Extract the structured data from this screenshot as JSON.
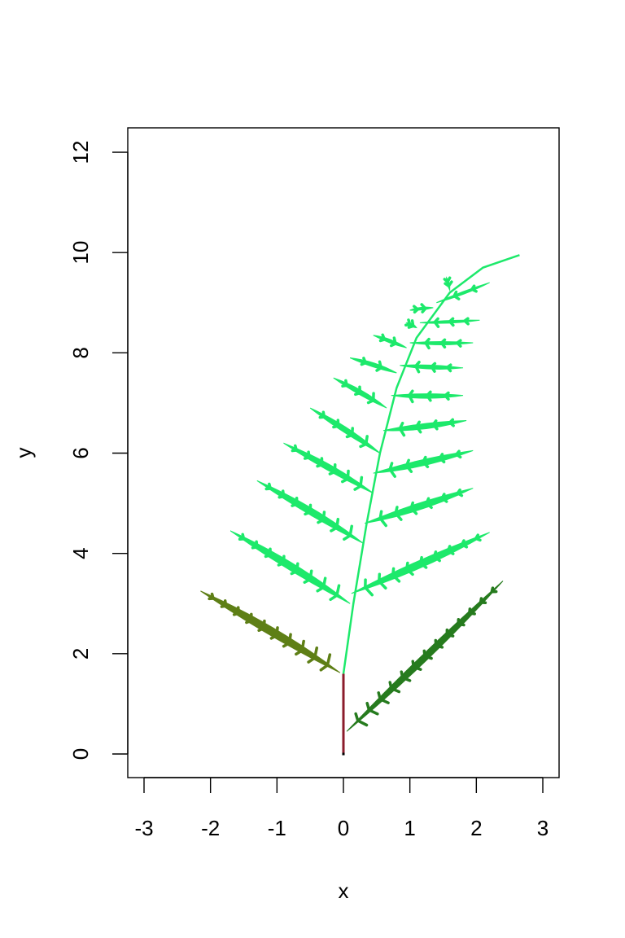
{
  "chart_data": {
    "type": "scatter",
    "title": "",
    "xlabel": "x",
    "ylabel": "y",
    "xlim": [
      -3,
      3
    ],
    "ylim": [
      0,
      12
    ],
    "x_ticks": [
      "-3",
      "-2",
      "-1",
      "0",
      "1",
      "2",
      "3"
    ],
    "y_ticks": [
      "0",
      "2",
      "4",
      "6",
      "8",
      "10",
      "12"
    ],
    "grid": false,
    "legend": "none",
    "colors": {
      "main_frond": "#1de96b",
      "left_leaflet": "#5e7f16",
      "right_leaflet": "#267b1e",
      "stem": "#8b1c2c"
    },
    "series": [
      {
        "points": [
          [
            0.0,
            1.6
          ],
          [
            -0.5,
            2.4
          ],
          [
            -0.15,
            2.1
          ],
          [
            -0.26,
            2.74
          ],
          [
            -0.3,
            3.13
          ],
          [
            -0.95,
            3.7
          ],
          [
            -1.4,
            3.85
          ],
          [
            -1.7,
            4.45
          ],
          [
            0.05,
            3.2
          ],
          [
            0.6,
            4.0
          ],
          [
            1.2,
            4.4
          ],
          [
            2.2,
            4.42
          ],
          [
            -0.25,
            4.25
          ],
          [
            -0.8,
            4.9
          ],
          [
            -1.3,
            5.45
          ],
          [
            0.25,
            4.6
          ],
          [
            1.0,
            5.1
          ],
          [
            1.9,
            5.3
          ],
          [
            -0.1,
            5.25
          ],
          [
            -0.55,
            5.7
          ],
          [
            -0.9,
            6.2
          ],
          [
            0.35,
            5.65
          ],
          [
            1.0,
            6.05
          ],
          [
            1.95,
            6.05
          ],
          [
            0.0,
            6.0
          ],
          [
            -0.3,
            6.5
          ],
          [
            -0.5,
            6.9
          ],
          [
            0.45,
            6.5
          ],
          [
            1.1,
            6.8
          ],
          [
            1.85,
            6.65
          ],
          [
            0.2,
            7.0
          ],
          [
            -0.1,
            7.2
          ],
          [
            -0.15,
            7.5
          ],
          [
            0.55,
            7.2
          ],
          [
            1.2,
            7.4
          ],
          [
            1.8,
            7.15
          ],
          [
            0.35,
            7.55
          ],
          [
            0.2,
            7.8
          ],
          [
            0.1,
            7.9
          ],
          [
            0.7,
            7.85
          ],
          [
            1.3,
            7.95
          ],
          [
            1.8,
            7.7
          ],
          [
            0.55,
            8.05
          ],
          [
            0.5,
            8.25
          ],
          [
            0.45,
            8.35
          ],
          [
            0.85,
            8.3
          ],
          [
            1.4,
            8.4
          ],
          [
            1.95,
            8.2
          ],
          [
            0.95,
            8.6
          ],
          [
            1.55,
            8.8
          ],
          [
            2.05,
            8.65
          ],
          [
            1.0,
            8.85
          ],
          [
            1.2,
            9.2
          ],
          [
            1.6,
            9.3
          ],
          [
            2.2,
            9.4
          ],
          [
            2.5,
            9.9
          ],
          [
            2.65,
            9.95
          ]
        ],
        "color": "#1de96b"
      },
      {
        "points": [
          [
            -0.1,
            1.62
          ],
          [
            -0.5,
            1.9
          ],
          [
            -1.0,
            2.0
          ],
          [
            -1.35,
            2.3
          ],
          [
            -1.75,
            2.75
          ],
          [
            -2.05,
            3.05
          ],
          [
            -2.15,
            3.25
          ],
          [
            -0.25,
            1.85
          ]
        ],
        "color": "#5e7f16"
      },
      {
        "points": [
          [
            0.05,
            0.45
          ],
          [
            0.6,
            0.85
          ],
          [
            1.2,
            1.45
          ],
          [
            1.5,
            1.8
          ],
          [
            1.85,
            2.45
          ],
          [
            2.2,
            3.05
          ],
          [
            2.4,
            3.45
          ]
        ],
        "color": "#267b1e"
      },
      {
        "points": [
          [
            0.0,
            0.0
          ],
          [
            0.0,
            1.6
          ]
        ],
        "color": "#8b1c2c"
      }
    ]
  }
}
